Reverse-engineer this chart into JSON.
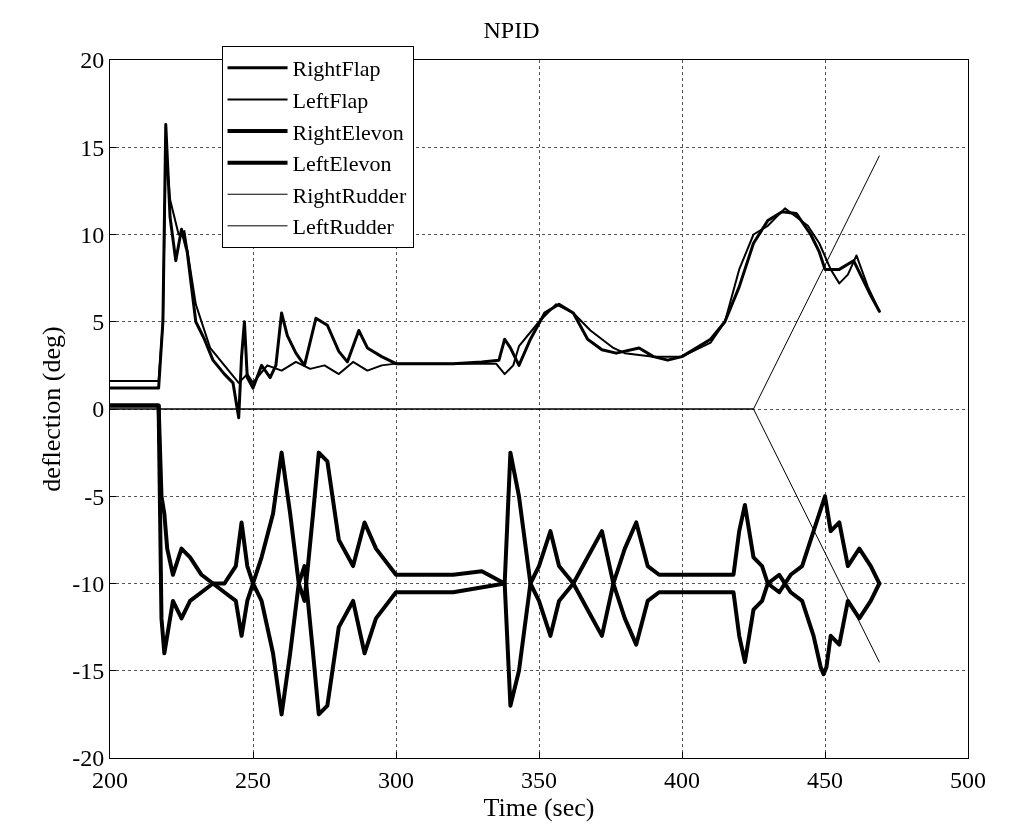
{
  "chart_data": {
    "type": "line",
    "title": "NPID",
    "xlabel": "Time (sec)",
    "ylabel": "deflection (deg)",
    "xlim": [
      200,
      500
    ],
    "xticks": [
      200,
      250,
      300,
      350,
      400,
      450,
      500
    ],
    "ylim": [
      -20,
      20
    ],
    "yticks": [
      -20,
      -15,
      -10,
      -5,
      0,
      5,
      10,
      15,
      20
    ],
    "grid": true,
    "legend": "top left",
    "marker": "none",
    "line_style": "solid",
    "series": [
      {
        "name": "RightFlap",
        "color": "#000000",
        "x": [
          200,
          217,
          218.5,
          219.5,
          221,
          223,
          225,
          227,
          230,
          233,
          236,
          240,
          243,
          245,
          246,
          247,
          248,
          250,
          253,
          256,
          258,
          260,
          262,
          265,
          268,
          272,
          276,
          280,
          283,
          287,
          290,
          295,
          300,
          310,
          320,
          330,
          336,
          338,
          340,
          343,
          347,
          352,
          357,
          362,
          367,
          372,
          377,
          385,
          390,
          395,
          400,
          410,
          415,
          420,
          425,
          430,
          435,
          440,
          445,
          448,
          450,
          455,
          460,
          463,
          466,
          469
        ],
        "values": [
          1.2,
          1.2,
          5,
          16.3,
          11,
          8.5,
          10.3,
          9,
          5,
          4,
          2.8,
          2,
          1.5,
          -0.5,
          3,
          5,
          1.8,
          1.2,
          2.5,
          1.8,
          2.5,
          5.5,
          4.2,
          3.2,
          2.5,
          5.2,
          4.8,
          3.3,
          2.7,
          4.5,
          3.5,
          3,
          2.6,
          2.6,
          2.6,
          2.7,
          2.8,
          4,
          3.5,
          2.5,
          4,
          5.5,
          6,
          5.5,
          4,
          3.4,
          3.2,
          3.5,
          3,
          2.8,
          3,
          4,
          5,
          7,
          9.5,
          10.8,
          11.3,
          11.2,
          10,
          9,
          8,
          8,
          8.5,
          7.5,
          6.5,
          5.6
        ]
      },
      {
        "name": "LeftFlap",
        "color": "#000000",
        "x": [
          200,
          217,
          218.5,
          219.5,
          221,
          224,
          226,
          230,
          235,
          240,
          245,
          248,
          250,
          255,
          260,
          265,
          270,
          275,
          280,
          285,
          290,
          295,
          300,
          320,
          335,
          338,
          341,
          343,
          350,
          356,
          362,
          368,
          372,
          376,
          380,
          390,
          400,
          410,
          415,
          420,
          425,
          430,
          436,
          440,
          444,
          448,
          452,
          455,
          458,
          461,
          465,
          469
        ],
        "values": [
          1.6,
          1.6,
          5,
          15,
          12,
          10,
          10.2,
          6,
          3.5,
          2.5,
          1.5,
          2,
          1.5,
          2.5,
          2.2,
          2.7,
          2.3,
          2.5,
          2,
          2.7,
          2.2,
          2.5,
          2.6,
          2.6,
          2.6,
          2,
          2.5,
          3.6,
          5,
          6,
          5.5,
          4.5,
          4,
          3.5,
          3.2,
          3,
          3,
          3.8,
          5,
          8,
          10,
          10.5,
          11.5,
          11,
          10.5,
          9.5,
          8,
          7.2,
          7.7,
          8.8,
          7,
          5.6
        ]
      },
      {
        "name": "RightElevon",
        "color": "#000000",
        "x": [
          200,
          217,
          218,
          219,
          220,
          222,
          225,
          228,
          232,
          236,
          240,
          244,
          246,
          248,
          250,
          253,
          257,
          260,
          263,
          266,
          268,
          271,
          273,
          276,
          280,
          285,
          289,
          293,
          300,
          310,
          320,
          330,
          338,
          340,
          343,
          347,
          350,
          354,
          357,
          362,
          367,
          372,
          376,
          380,
          384,
          388,
          392,
          400,
          410,
          418,
          420,
          422,
          425,
          428,
          430,
          434,
          438,
          442,
          446,
          450,
          452,
          455,
          458,
          462,
          466,
          469
        ],
        "values": [
          0.2,
          0.2,
          -5,
          -6,
          -8,
          -9.5,
          -8,
          -8.5,
          -9.5,
          -10,
          -10,
          -9,
          -6.5,
          -9,
          -10,
          -8.5,
          -6,
          -2.5,
          -6,
          -10,
          -11,
          -6,
          -2.5,
          -3,
          -7.5,
          -9,
          -6.5,
          -8,
          -9.5,
          -9.5,
          -9.5,
          -9.3,
          -10,
          -2.5,
          -5,
          -10,
          -9,
          -7,
          -9,
          -10,
          -8.5,
          -7,
          -10,
          -8,
          -6.5,
          -9,
          -9.5,
          -9.5,
          -9.5,
          -9.5,
          -7,
          -5.5,
          -8.5,
          -9,
          -10,
          -10.5,
          -9.5,
          -9,
          -7,
          -5,
          -7,
          -6.5,
          -9,
          -8,
          -9,
          -10
        ]
      },
      {
        "name": "LeftElevon",
        "color": "#000000",
        "x": [
          200,
          217,
          218,
          219,
          220,
          222,
          225,
          228,
          232,
          236,
          240,
          244,
          246,
          248,
          250,
          253,
          257,
          260,
          263,
          266,
          268,
          271,
          273,
          276,
          280,
          285,
          289,
          293,
          300,
          320,
          338,
          340,
          343,
          347,
          350,
          354,
          357,
          362,
          367,
          372,
          376,
          380,
          384,
          388,
          392,
          418,
          420,
          422,
          425,
          428,
          430,
          434,
          438,
          442,
          446,
          448.5,
          449.5,
          450.5,
          452,
          455,
          458,
          462,
          466,
          469
        ],
        "values": [
          0.2,
          0.2,
          -12,
          -14,
          -13,
          -11,
          -12,
          -11,
          -10.5,
          -10,
          -10.5,
          -11,
          -13,
          -11,
          -10,
          -11,
          -14,
          -17.5,
          -14,
          -10,
          -9,
          -14,
          -17.5,
          -17,
          -12.5,
          -11,
          -14,
          -12,
          -10.5,
          -10.5,
          -10,
          -17,
          -15,
          -10,
          -11,
          -13,
          -11,
          -10,
          -11.5,
          -13,
          -10,
          -12,
          -13.5,
          -11,
          -10.5,
          -10.5,
          -13,
          -14.5,
          -11.5,
          -11,
          -10,
          -9.5,
          -10.5,
          -11,
          -13,
          -14.8,
          -15.2,
          -14.8,
          -13,
          -13.5,
          -11,
          -12,
          -11,
          -10
        ]
      },
      {
        "name": "RightRudder",
        "color": "#000000",
        "x": [
          200,
          425,
          469
        ],
        "values": [
          0,
          0,
          14.5
        ]
      },
      {
        "name": "LeftRudder",
        "color": "#000000",
        "x": [
          200,
          425,
          469
        ],
        "values": [
          0,
          0,
          -14.5
        ]
      }
    ]
  }
}
